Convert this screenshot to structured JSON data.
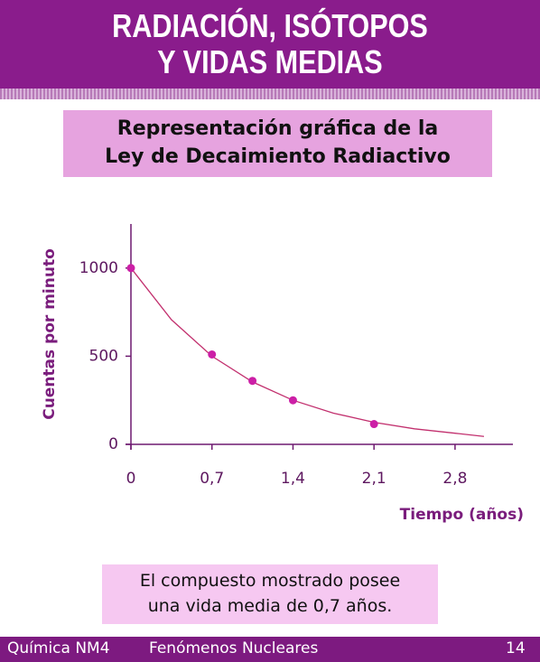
{
  "header": {
    "title": [
      "RADIACIÓN, ISÓTOPOS",
      "Y VIDAS MEDIAS"
    ]
  },
  "chart_data": {
    "type": "scatter",
    "title": [
      "Representación gráfica de la",
      "Ley de Decaimiento Radiactivo"
    ],
    "xlabel": "Tiempo (años)",
    "ylabel": "Cuentas por minuto",
    "series": [
      {
        "type": "scatter",
        "color": "#cc1fa6",
        "x": [
          0,
          0.7,
          1.05,
          1.4,
          2.1
        ],
        "values": [
          1000,
          510,
          360,
          250,
          115
        ]
      },
      {
        "type": "line",
        "color": "#c2306e",
        "x": [
          0,
          0.35,
          0.7,
          1.05,
          1.4,
          1.75,
          2.1,
          2.45,
          2.8,
          3.05
        ],
        "values": [
          1000,
          707,
          500,
          354,
          250,
          177,
          125,
          88,
          63,
          45
        ]
      }
    ],
    "xlim": [
      0,
      3.3
    ],
    "ylim": [
      0,
      1250
    ],
    "xticks": [
      0,
      {
        "value": 0.7,
        "label": "0,7"
      },
      {
        "value": 1.4,
        "label": "1,4"
      },
      {
        "value": 2.1,
        "label": "2,1"
      },
      {
        "value": 2.8,
        "label": "2,8"
      }
    ],
    "yticks": [
      0,
      500,
      1000
    ],
    "grid": false
  },
  "caption": [
    "El compuesto mostrado posee",
    "una vida media de 0,7 años."
  ],
  "footer": {
    "course": "Química NM4",
    "topic": "Fenómenos Nucleares",
    "page": "14"
  }
}
